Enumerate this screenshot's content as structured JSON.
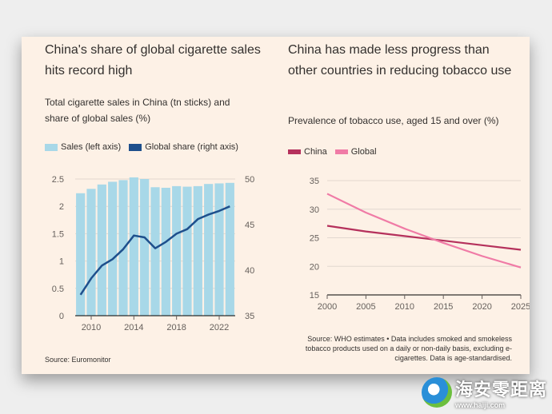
{
  "left": {
    "title": "China's share of global cigarette sales hits record high",
    "subtitle": "Total cigarette sales in China (tn sticks) and share of global sales (%)",
    "legend": {
      "sales": "Sales (left axis)",
      "share": "Global share (right axis)"
    },
    "source": "Source: Euromonitor"
  },
  "right": {
    "title": "China has made less progress than other countries in reducing tobacco use",
    "subtitle": "Prevalence of tobacco use, aged 15 and over (%)",
    "legend": {
      "china": "China",
      "global": "Global"
    },
    "source": "Source: WHO estimates • Data includes smoked and smokeless tobacco products used on a daily or non-daily basis, excluding e-cigarettes. Data is age-standardised."
  },
  "watermark": {
    "big": "海安零距离",
    "small": "www.haiji.com"
  },
  "colors": {
    "bar": "#a8d8e8",
    "share": "#1e4f8c",
    "china": "#b5315c",
    "global": "#f07ba6",
    "background": "#fdf1e6"
  },
  "chart_data": [
    {
      "type": "bar",
      "x": [
        2009,
        2010,
        2011,
        2012,
        2013,
        2014,
        2015,
        2016,
        2017,
        2018,
        2019,
        2020,
        2021,
        2022,
        2023
      ],
      "ylim": [
        0,
        2.5
      ],
      "y2lim": [
        35,
        50
      ],
      "y_ticks": [
        "0",
        "0.5",
        "1",
        "1.5",
        "2",
        "2.5"
      ],
      "y2_ticks": [
        "35",
        "40",
        "45",
        "50"
      ],
      "x_ticks": [
        "2010",
        "2014",
        "2018",
        "2022"
      ],
      "series": [
        {
          "name": "Sales (left axis)",
          "type": "bar",
          "values": [
            2.24,
            2.32,
            2.4,
            2.45,
            2.48,
            2.53,
            2.5,
            2.35,
            2.34,
            2.37,
            2.36,
            2.37,
            2.41,
            2.42,
            2.43
          ]
        },
        {
          "name": "Global share (right axis)",
          "type": "line",
          "axis": "right",
          "values": [
            37.3,
            39.1,
            40.5,
            41.2,
            42.3,
            43.8,
            43.6,
            42.4,
            43.1,
            44.0,
            44.5,
            45.6,
            46.1,
            46.5,
            47.0
          ]
        }
      ]
    },
    {
      "type": "line",
      "x": [
        2000,
        2005,
        2010,
        2015,
        2020,
        2025
      ],
      "ylim": [
        15,
        35
      ],
      "y_ticks": [
        "15",
        "20",
        "25",
        "30",
        "35"
      ],
      "x_ticks": [
        "2000",
        "2005",
        "2010",
        "2015",
        "2020",
        "2025"
      ],
      "series": [
        {
          "name": "China",
          "values": [
            27.1,
            26.1,
            25.3,
            24.5,
            23.7,
            22.9
          ]
        },
        {
          "name": "Global",
          "values": [
            32.7,
            29.4,
            26.6,
            24.1,
            21.8,
            19.8
          ]
        }
      ]
    }
  ]
}
